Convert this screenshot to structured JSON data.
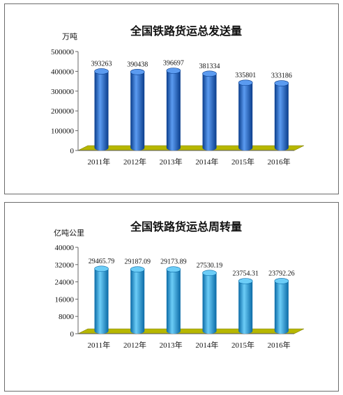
{
  "chart_data": [
    {
      "type": "bar",
      "title": "全国铁路货运总发送量",
      "unit_label": "万吨",
      "categories": [
        "2011年",
        "2012年",
        "2013年",
        "2014年",
        "2015年",
        "2016年"
      ],
      "values": [
        393263,
        390438,
        396697,
        381334,
        335801,
        333186
      ],
      "value_labels": [
        "393263",
        "390438",
        "396697",
        "381334",
        "335801",
        "333186"
      ],
      "yticks": [
        0,
        100000,
        200000,
        300000,
        400000,
        500000
      ],
      "ylim": [
        0,
        500000
      ],
      "legend": "none",
      "grid": false,
      "colors": {
        "bar": "#1f66c8",
        "bar_dark": "#0a3d8c",
        "bar_light": "#5b9bf0",
        "floor": "#b7b700"
      }
    },
    {
      "type": "bar",
      "title": "全国铁路货运总周转量",
      "unit_label": "亿吨公里",
      "categories": [
        "2011年",
        "2012年",
        "2013年",
        "2014年",
        "2015年",
        "2016年"
      ],
      "values": [
        29465.79,
        29187.09,
        29173.89,
        27530.19,
        23754.31,
        23792.26
      ],
      "value_labels": [
        "29465.79",
        "29187.09",
        "29173.89",
        "27530.19",
        "23754.31",
        "23792.26"
      ],
      "yticks": [
        0,
        8000,
        16000,
        24000,
        32000,
        40000
      ],
      "ylim": [
        0,
        40000
      ],
      "legend": "none",
      "grid": false,
      "colors": {
        "bar": "#16a4e6",
        "bar_dark": "#0a6aa6",
        "bar_light": "#6ccdf7",
        "floor": "#b7b700"
      }
    }
  ]
}
